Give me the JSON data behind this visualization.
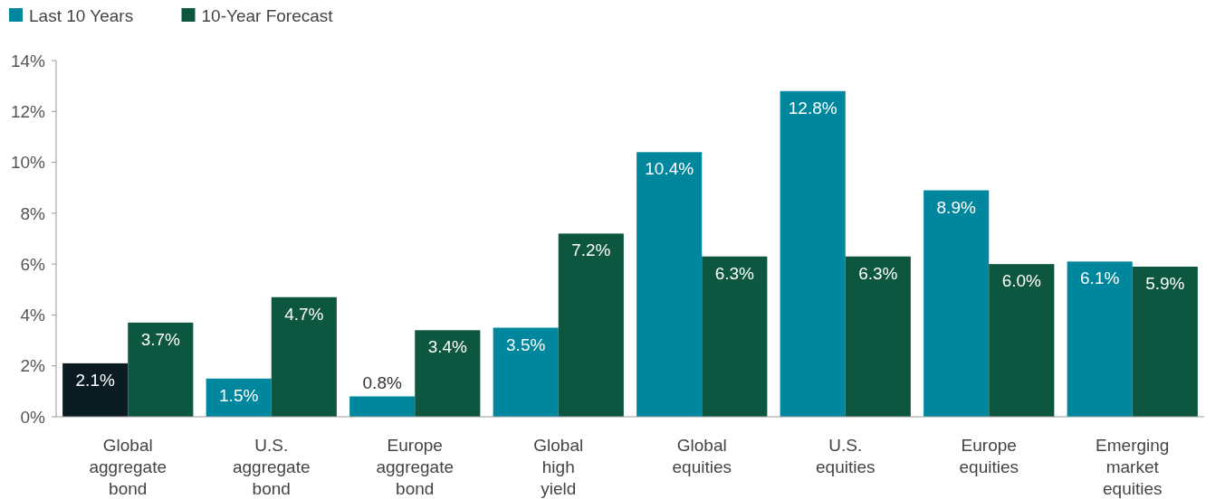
{
  "chart_data": {
    "type": "bar",
    "categories": [
      "Global aggregate bond",
      "U.S. aggregate bond",
      "Europe aggregate bond",
      "Global high yield",
      "Global equities",
      "U.S. equities",
      "Europe equities",
      "Emerging market equities"
    ],
    "series": [
      {
        "name": "Last 10 Years",
        "color": "#00879e",
        "colors": [
          "#0a1c22",
          "#00879e",
          "#00879e",
          "#00879e",
          "#00879e",
          "#00879e",
          "#00879e",
          "#00879e"
        ],
        "values": [
          2.1,
          1.5,
          0.8,
          3.5,
          10.4,
          12.8,
          8.9,
          6.1
        ],
        "value_labels": [
          "2.1%",
          "1.5%",
          "0.8%",
          "3.5%",
          "10.4%",
          "12.8%",
          "8.9%",
          "6.1%"
        ]
      },
      {
        "name": "10-Year Forecast",
        "color": "#0d5640",
        "values": [
          3.7,
          4.7,
          3.4,
          7.2,
          6.3,
          6.3,
          6.0,
          5.9
        ],
        "value_labels": [
          "3.7%",
          "4.7%",
          "3.4%",
          "7.2%",
          "6.3%",
          "6.3%",
          "6.0%",
          "5.9%"
        ]
      }
    ],
    "ylim": [
      0,
      14
    ],
    "yticks": [
      {
        "value": 0,
        "label": "0%"
      },
      {
        "value": 2,
        "label": "2%"
      },
      {
        "value": 4,
        "label": "4%"
      },
      {
        "value": 6,
        "label": "6%"
      },
      {
        "value": 8,
        "label": "8%"
      },
      {
        "value": 10,
        "label": "10%"
      },
      {
        "value": 12,
        "label": "12%"
      },
      {
        "value": 14,
        "label": "14%"
      }
    ],
    "legend": "top left",
    "grid": false
  }
}
